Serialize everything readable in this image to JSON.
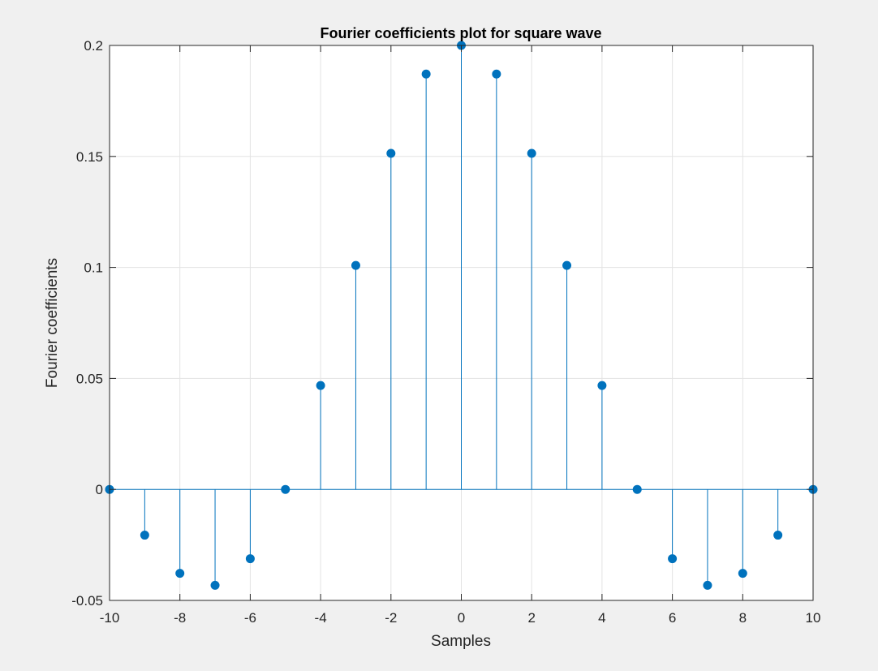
{
  "chart_data": {
    "type": "stem",
    "title": "Fourier coefficients plot for square wave",
    "xlabel": "Samples",
    "ylabel": "Fourier coefficients",
    "xlim": [
      -10,
      10
    ],
    "ylim": [
      -0.05,
      0.2
    ],
    "xticks": [
      -10,
      -8,
      -6,
      -4,
      -2,
      0,
      2,
      4,
      6,
      8,
      10
    ],
    "xtick_labels": [
      "-10",
      "-8",
      "-6",
      "-4",
      "-2",
      "0",
      "2",
      "4",
      "6",
      "8",
      "10"
    ],
    "yticks": [
      -0.05,
      0,
      0.05,
      0.1,
      0.15,
      0.2
    ],
    "ytick_labels": [
      "-0.05",
      "0",
      "0.05",
      "0.1",
      "0.15",
      "0.2"
    ],
    "grid": true,
    "color": "#0072BD",
    "x": [
      -10,
      -9,
      -8,
      -7,
      -6,
      -5,
      -4,
      -3,
      -2,
      -1,
      0,
      1,
      2,
      3,
      4,
      5,
      6,
      7,
      8,
      9,
      10
    ],
    "y": [
      0,
      -0.0206,
      -0.0378,
      -0.0432,
      -0.0312,
      0,
      0.0468,
      0.1009,
      0.1514,
      0.1871,
      0.2,
      0.1871,
      0.1514,
      0.1009,
      0.0468,
      0,
      -0.0312,
      -0.0432,
      -0.0378,
      -0.0206,
      0
    ]
  }
}
